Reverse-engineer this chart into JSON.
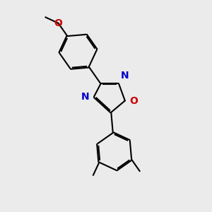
{
  "background_color": "#ebebeb",
  "bond_color": "#000000",
  "N_color": "#0000cc",
  "O_color": "#cc0000",
  "bond_lw": 1.5,
  "dbo": 0.018,
  "figsize": [
    3.0,
    3.0
  ],
  "dpi": 100,
  "xlim": [
    -1.8,
    2.2
  ],
  "ylim": [
    -2.8,
    2.8
  ]
}
